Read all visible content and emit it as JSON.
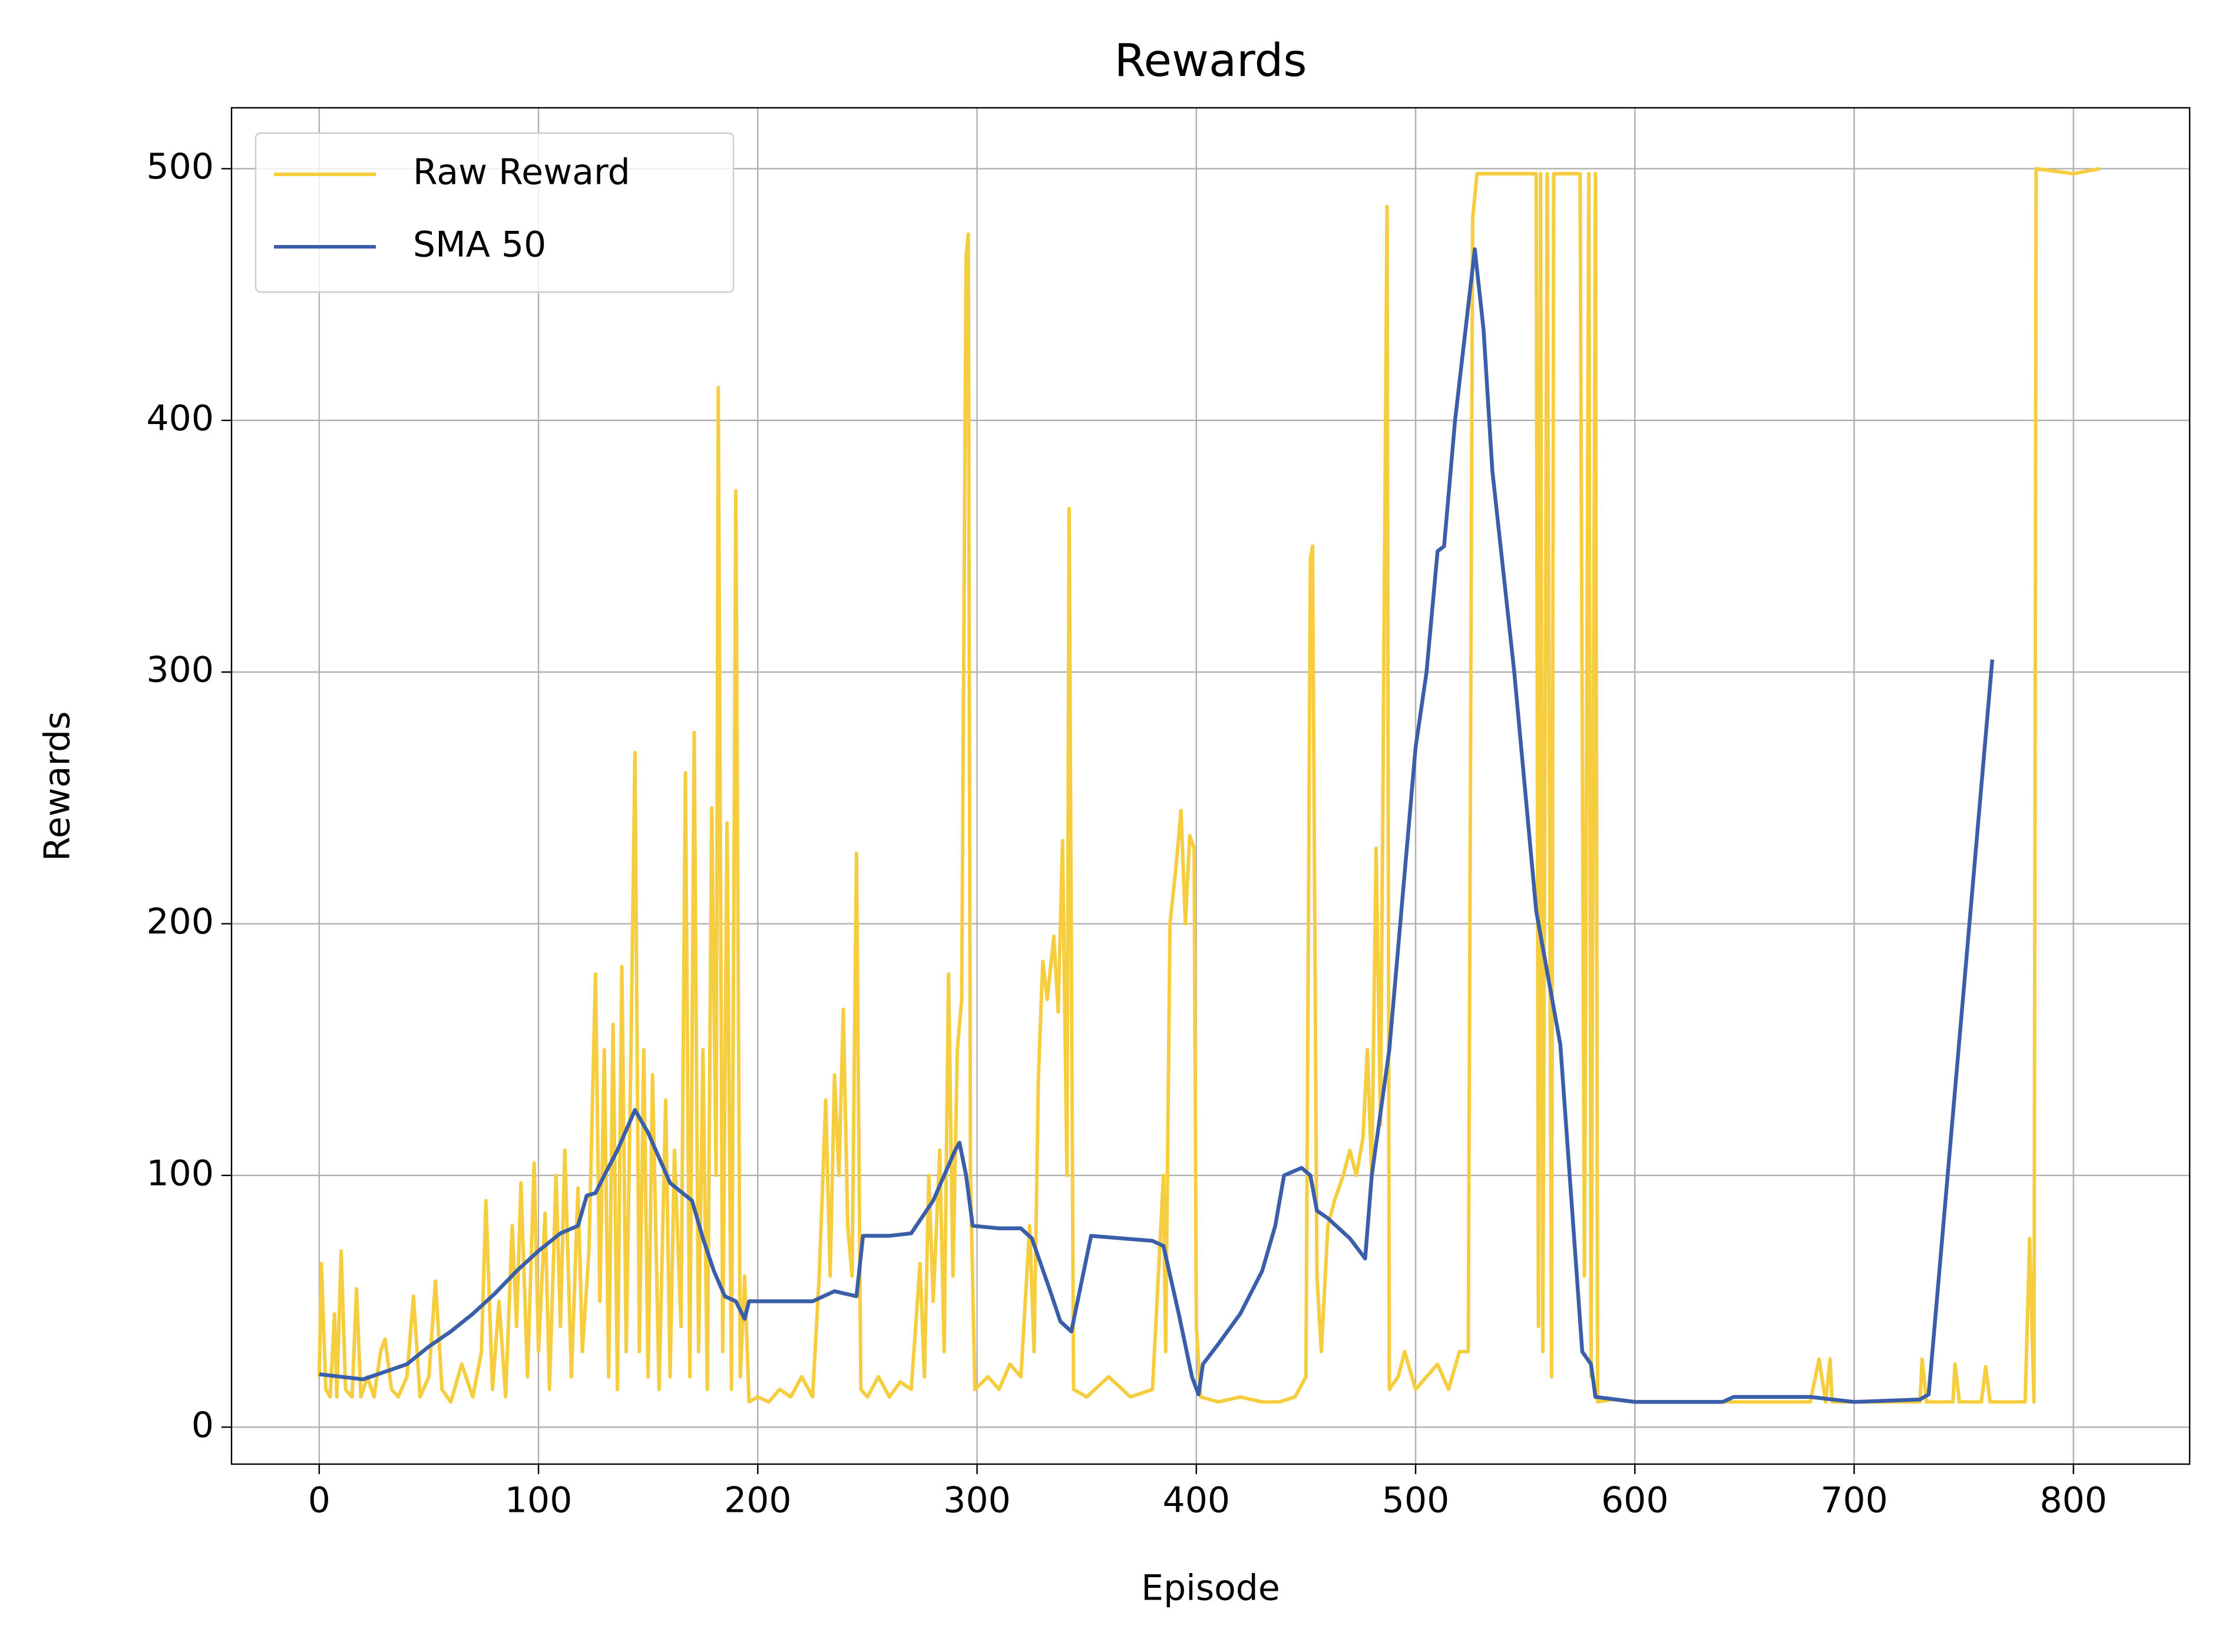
{
  "chart_data": {
    "type": "line",
    "title": "Rewards",
    "x_label": "Episode",
    "y_label": "Rewards",
    "xlim": [
      -40,
      853
    ],
    "ylim": [
      -14.7,
      524.2
    ],
    "xticks": [
      0,
      100,
      200,
      300,
      400,
      500,
      600,
      700,
      800
    ],
    "yticks": [
      0,
      100,
      200,
      300,
      400,
      500
    ],
    "grid": true,
    "legend": "upper left",
    "series": [
      {
        "name": "Raw Reward",
        "color": "#f6cd3e",
        "x": [
          0,
          1,
          3,
          5,
          7,
          8,
          10,
          12,
          15,
          17,
          19,
          22,
          25,
          28,
          30,
          33,
          36,
          40,
          43,
          46,
          50,
          53,
          56,
          60,
          65,
          70,
          74,
          76,
          79,
          82,
          85,
          88,
          90,
          92,
          95,
          98,
          100,
          103,
          105,
          108,
          110,
          112,
          115,
          118,
          120,
          123,
          126,
          128,
          130,
          132,
          134,
          136,
          138,
          140,
          142,
          144,
          146,
          148,
          150,
          152,
          155,
          158,
          160,
          162,
          165,
          167,
          169,
          171,
          173,
          175,
          177,
          179,
          181,
          182,
          184,
          186,
          188,
          190,
          192,
          194,
          196,
          200,
          205,
          210,
          215,
          220,
          225,
          228,
          231,
          233,
          235,
          237,
          239,
          241,
          243,
          245,
          247,
          250,
          255,
          260,
          265,
          270,
          274,
          276,
          278,
          280,
          283,
          285,
          287,
          289,
          291,
          293,
          295,
          296,
          297,
          299,
          305,
          310,
          315,
          320,
          324,
          326,
          328,
          330,
          332,
          335,
          337,
          339,
          341,
          342,
          344,
          350,
          360,
          370,
          380,
          385,
          386,
          388,
          391,
          393,
          395,
          397,
          399,
          400,
          402,
          410,
          420,
          430,
          438,
          445,
          450,
          452,
          453,
          455,
          457,
          460,
          463,
          467,
          470,
          473,
          476,
          478,
          480,
          482,
          484,
          487,
          488,
          492,
          495,
          500,
          505,
          510,
          515,
          520,
          524,
          526,
          528,
          540,
          555,
          556,
          557,
          558,
          560,
          562,
          563,
          575,
          577,
          579,
          580,
          582,
          583,
          590,
          600,
          650,
          680,
          684,
          687,
          689,
          690,
          700,
          720,
          730,
          731,
          733,
          745,
          746,
          748,
          758,
          760,
          762,
          778,
          780,
          782,
          783,
          800,
          812
        ],
        "values": [
          20,
          65,
          15,
          12,
          45,
          12,
          70,
          15,
          12,
          55,
          12,
          20,
          12,
          30,
          35,
          15,
          12,
          20,
          52,
          12,
          20,
          58,
          15,
          10,
          25,
          12,
          30,
          90,
          15,
          50,
          12,
          80,
          40,
          97,
          20,
          105,
          30,
          85,
          15,
          100,
          40,
          110,
          20,
          95,
          30,
          70,
          180,
          50,
          150,
          20,
          160,
          15,
          183,
          30,
          140,
          268,
          30,
          150,
          20,
          140,
          15,
          130,
          20,
          110,
          40,
          260,
          20,
          276,
          30,
          150,
          15,
          246,
          100,
          413,
          30,
          240,
          15,
          372,
          20,
          60,
          10,
          12,
          10,
          15,
          12,
          20,
          12,
          60,
          130,
          60,
          140,
          100,
          166,
          80,
          60,
          228,
          15,
          12,
          20,
          12,
          18,
          15,
          65,
          20,
          100,
          50,
          110,
          30,
          180,
          60,
          150,
          170,
          465,
          474,
          100,
          15,
          20,
          15,
          25,
          20,
          80,
          30,
          140,
          185,
          170,
          195,
          165,
          233,
          100,
          365,
          15,
          12,
          20,
          12,
          15,
          100,
          30,
          200,
          225,
          245,
          200,
          235,
          230,
          40,
          12,
          10,
          12,
          10,
          10,
          12,
          20,
          345,
          350,
          60,
          30,
          80,
          90,
          100,
          110,
          100,
          115,
          150,
          100,
          230,
          120,
          485,
          15,
          20,
          30,
          15,
          20,
          25,
          15,
          30,
          30,
          480,
          498,
          498,
          498,
          40,
          498,
          30,
          498,
          20,
          498,
          498,
          60,
          498,
          20,
          498,
          10,
          11,
          10,
          10,
          10,
          27,
          10,
          27,
          10,
          10,
          10,
          10,
          27,
          10,
          10,
          25,
          10,
          10,
          24,
          10,
          10,
          75,
          10,
          500,
          498,
          500
        ]
      },
      {
        "name": "SMA 50",
        "color": "#3a5ea9",
        "x": [
          0,
          10,
          20,
          30,
          40,
          50,
          60,
          70,
          80,
          90,
          100,
          110,
          118,
          122,
          126,
          130,
          136,
          144,
          150,
          160,
          170,
          175,
          180,
          185,
          190,
          194,
          196,
          210,
          225,
          235,
          245,
          248,
          260,
          270,
          280,
          290,
          292,
          295,
          298,
          310,
          320,
          325,
          333,
          338,
          343,
          352,
          380,
          385,
          392,
          398,
          401,
          403,
          410,
          420,
          430,
          436,
          440,
          448,
          452,
          455,
          460,
          470,
          477,
          480,
          488,
          495,
          500,
          505,
          510,
          513,
          518,
          527,
          531,
          535,
          545,
          555,
          566,
          576,
          580,
          582,
          600,
          640,
          645,
          680,
          690,
          700,
          730,
          734,
          763
        ],
        "values": [
          21,
          20,
          19,
          22,
          25,
          32,
          38,
          45,
          53,
          62,
          70,
          77,
          80,
          92,
          93,
          100,
          110,
          126,
          117,
          97,
          90,
          75,
          62,
          52,
          50,
          43,
          50,
          50,
          50,
          54,
          52,
          76,
          76,
          77,
          90,
          110,
          113,
          100,
          80,
          79,
          79,
          75,
          55,
          42,
          38,
          76,
          74,
          72,
          45,
          20,
          13,
          25,
          33,
          45,
          62,
          80,
          100,
          103,
          100,
          86,
          83,
          75,
          67,
          100,
          150,
          220,
          270,
          300,
          348,
          350,
          400,
          468,
          436,
          380,
          300,
          205,
          152,
          30,
          25,
          12,
          10,
          10,
          12,
          12,
          11,
          10,
          11,
          13,
          305
        ]
      }
    ]
  }
}
